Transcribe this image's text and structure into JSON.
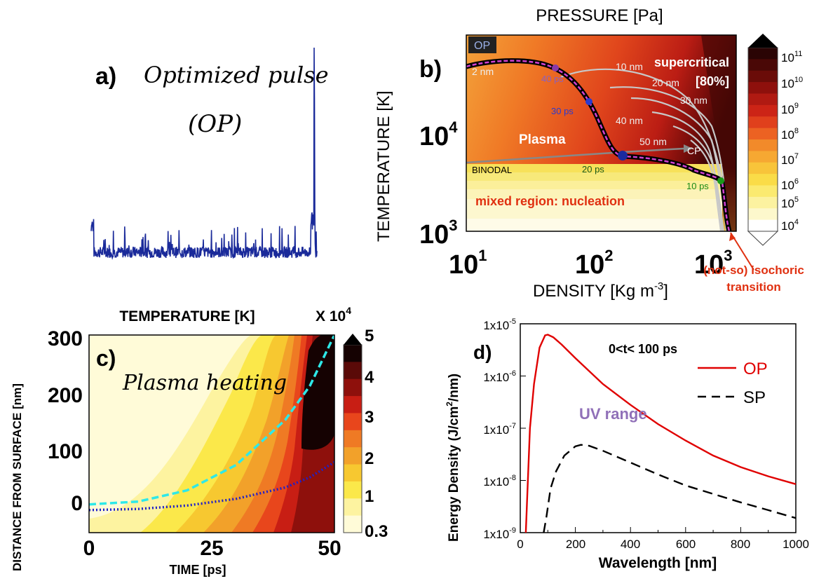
{
  "colors": {
    "pulse": "#1a2a9a",
    "op_line": "#e00000",
    "sp_line": "#000000",
    "dashed_cyan": "#2ee8e8",
    "dotted_blue": "#2020c8",
    "label_red": "#e03010",
    "label_purple": "#9070b8",
    "label_green": "#1a8a1a"
  },
  "panel_a": {
    "letter": "a)",
    "title": "Optimized pulse",
    "subtitle": "(OP)"
  },
  "panel_b": {
    "letter": "b)",
    "title": "PRESSURE [Pa]",
    "xlabel": "DENSITY [Kg m",
    "xlabel_sup": "-3",
    "xlabel_end": "]",
    "ylabel": "TEMPERATURE [K]",
    "xticks": [
      "10",
      "10",
      "10"
    ],
    "xtick_exps": [
      "1",
      "2",
      "3"
    ],
    "yticks": [
      "10",
      "10"
    ],
    "ytick_exps": [
      "4",
      "3"
    ],
    "colorbar_ticks": [
      "10",
      "10",
      "10",
      "10",
      "10",
      "10",
      "10",
      "10"
    ],
    "colorbar_exps": [
      "11",
      "10",
      "9",
      "8",
      "7",
      "6",
      "5",
      "4"
    ],
    "op_tag": "OP",
    "supercritical": "supercritical",
    "supercritical_pct": "[80%]",
    "plasma": "Plasma",
    "binodal": "BINODAL",
    "cp": "CP",
    "mixed": "mixed region: nucleation",
    "isochoric_1": "(not-so) isochoric",
    "isochoric_2": "transition",
    "depths": [
      "2 nm",
      "10 nm",
      "20 nm",
      "30 nm",
      "40 nm",
      "50 nm"
    ],
    "times": [
      "40 ps",
      "30 ps",
      "20 ps",
      "10 ps"
    ]
  },
  "panel_c": {
    "letter": "c)",
    "title": "TEMPERATURE [K]",
    "colorbar_title": "X 10",
    "colorbar_title_exp": "4",
    "annotation": "Plasma heating",
    "xlabel": "TIME [ps]",
    "ylabel": "DISTANCE FROM SURFACE [nm]",
    "xticks": [
      "0",
      "25",
      "50"
    ],
    "yticks": [
      "300",
      "200",
      "100",
      "0"
    ],
    "colorbar_ticks": [
      "5",
      "4",
      "3",
      "2",
      "1",
      "0.3"
    ]
  },
  "panel_d": {
    "letter": "d)",
    "annotation": "0<t< 100 ps",
    "uv_label": "UV range",
    "xlabel": "Wavelength [nm]",
    "ylabel": "Energy Density (J/cm",
    "ylabel_sup": "2",
    "ylabel_end": "/nm)",
    "legend_op": "OP",
    "legend_sp": "SP",
    "xticks": [
      "0",
      "200",
      "400",
      "600",
      "800",
      "1000"
    ],
    "yticks": [
      "1x10",
      "1x10",
      "1x10",
      "1x10",
      "1x10"
    ],
    "ytick_exps": [
      "-5",
      "-6",
      "-7",
      "-8",
      "-9"
    ]
  },
  "chart_data": [
    {
      "type": "line",
      "panel": "a",
      "title": "Optimized pulse (OP)",
      "series": [
        {
          "name": "OP",
          "shape": "noisy low plateau with a single sharp spike at the end"
        }
      ]
    },
    {
      "type": "heatmap",
      "panel": "b",
      "title": "PRESSURE [Pa]",
      "xlabel": "DENSITY [Kg m-3]",
      "ylabel": "TEMPERATURE [K]",
      "x_scale": "log",
      "xlim": [
        10,
        4000
      ],
      "y_scale": "log",
      "ylim": [
        1000,
        50000
      ],
      "colorbar_range": [
        10000.0,
        100000000000.0
      ],
      "colorbar_scale": "log",
      "series": [
        {
          "name": "2 nm",
          "x": [
            10,
            20,
            40,
            60,
            80,
            100,
            150,
            250,
            500,
            1000,
            1800,
            2000,
            2200
          ],
          "y": [
            40000,
            41000,
            42000,
            38000,
            32000,
            25000,
            14000,
            5600,
            5000,
            4000,
            3400,
            2500,
            1200
          ]
        },
        {
          "name": "binodal",
          "x": [
            10,
            100,
            500,
            900
          ],
          "y": [
            4800,
            5400,
            6200,
            6700
          ]
        }
      ],
      "time_markers": [
        {
          "label": "40 ps",
          "x": 62,
          "y": 35000
        },
        {
          "label": "30 ps",
          "x": 100,
          "y": 24000
        },
        {
          "label": "20 ps",
          "x": 250,
          "y": 5600
        },
        {
          "label": "10 ps",
          "x": 2000,
          "y": 3300
        }
      ]
    },
    {
      "type": "heatmap",
      "panel": "c",
      "title": "TEMPERATURE [K]",
      "xlabel": "TIME [ps]",
      "ylabel": "DISTANCE FROM SURFACE [nm]",
      "xlim": [
        0,
        50
      ],
      "ylim": [
        -50,
        300
      ],
      "colorbar_levels_x1e4": [
        0.3,
        1,
        1.5,
        2,
        2.5,
        3,
        3.5,
        4,
        4.5,
        5
      ],
      "series": [
        {
          "name": "dashed",
          "x": [
            0,
            10,
            20,
            30,
            40,
            45,
            50
          ],
          "y": [
            0,
            5,
            25,
            70,
            150,
            210,
            300
          ]
        },
        {
          "name": "dotted",
          "x": [
            0,
            10,
            20,
            30,
            40,
            45,
            50
          ],
          "y": [
            -10,
            -8,
            -2,
            10,
            30,
            48,
            75
          ]
        }
      ]
    },
    {
      "type": "line",
      "panel": "d",
      "xlabel": "Wavelength [nm]",
      "ylabel": "Energy Density (J/cm2/nm)",
      "xlim": [
        0,
        1000
      ],
      "ylim": [
        1e-09,
        1e-05
      ],
      "y_scale": "log",
      "series": [
        {
          "name": "OP",
          "x": [
            20,
            35,
            50,
            70,
            90,
            100,
            120,
            150,
            200,
            300,
            400,
            500,
            600,
            700,
            800,
            900,
            1000
          ],
          "y": [
            1e-09,
            1e-07,
            7e-07,
            3.5e-06,
            6e-06,
            6.2e-06,
            5.5e-06,
            4e-06,
            2.2e-06,
            7e-07,
            2.8e-07,
            1.2e-07,
            5.8e-08,
            3e-08,
            1.8e-08,
            1.2e-08,
            8.5e-09
          ]
        },
        {
          "name": "SP",
          "x": [
            85,
            95,
            110,
            130,
            160,
            200,
            220,
            250,
            300,
            400,
            500,
            600,
            700,
            800,
            900,
            1000
          ],
          "y": [
            1e-09,
            2e-09,
            7e-09,
            1.5e-08,
            3e-08,
            4.5e-08,
            4.8e-08,
            4.6e-08,
            3.7e-08,
            2.2e-08,
            1.3e-08,
            8e-09,
            5.5e-09,
            3.8e-09,
            2.7e-09,
            1.9e-09
          ]
        }
      ]
    }
  ]
}
